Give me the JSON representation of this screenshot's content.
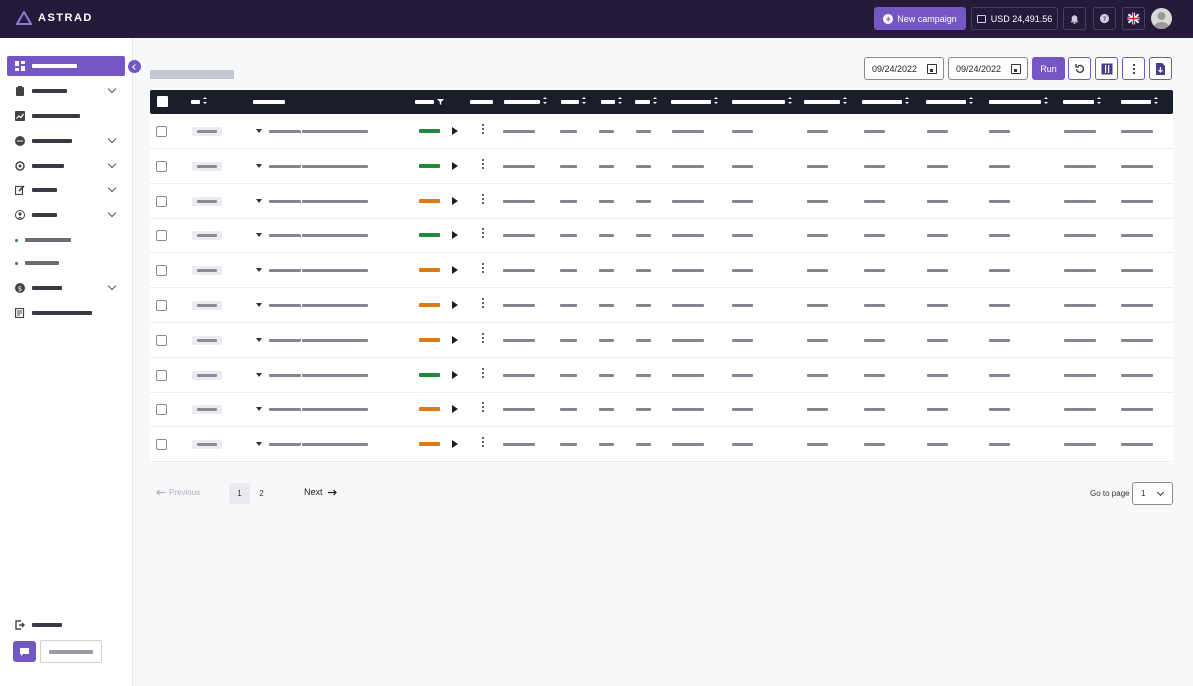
{
  "header": {
    "logo_text": "ASTRAD",
    "new_campaign_label": "New campaign",
    "balance": "USD 24,491.56",
    "icons": [
      "bell-icon",
      "help-icon",
      "uk-flag-icon",
      "user-avatar-icon"
    ]
  },
  "sidebar": {
    "items": [
      {
        "icon": "dashboard-icon",
        "active": true
      },
      {
        "icon": "clipboard-icon",
        "chevron": true
      },
      {
        "icon": "trend-chart-icon"
      },
      {
        "icon": "chat-bubble-icon",
        "chevron": true
      },
      {
        "icon": "target-icon",
        "chevron": true
      },
      {
        "icon": "edit-icon",
        "chevron": true
      },
      {
        "icon": "user-circle-icon",
        "chevron": true
      },
      {
        "icon": "dot-icon"
      },
      {
        "icon": "dot-icon"
      },
      {
        "icon": "dollar-icon",
        "chevron": true
      },
      {
        "icon": "report-icon"
      }
    ],
    "bottom_icon": "logout-icon"
  },
  "toolbar": {
    "date_from": "09/24/2022",
    "date_to": "09/24/2022",
    "run_label": "Run",
    "tools": [
      "refresh-icon",
      "columns-icon",
      "more-vertical-icon",
      "export-file-icon"
    ]
  },
  "table": {
    "rows": [
      {
        "status_color": "#1f8a3b"
      },
      {
        "status_color": "#1f8a3b"
      },
      {
        "status_color": "#e07a10"
      },
      {
        "status_color": "#1f8a3b"
      },
      {
        "status_color": "#e07a10"
      },
      {
        "status_color": "#e07a10"
      },
      {
        "status_color": "#e07a10"
      },
      {
        "status_color": "#1f8a3b"
      },
      {
        "status_color": "#e07a10"
      },
      {
        "status_color": "#e07a10"
      }
    ]
  },
  "pagination": {
    "previous_label": "Previous",
    "pages": [
      "1",
      "2"
    ],
    "current_page": "1",
    "next_label": "Next",
    "goto_label": "Go to page",
    "goto_value": "1"
  },
  "colors": {
    "accent": "#7456c5",
    "topbar": "#261a3a",
    "table_header": "#1b1d2a"
  }
}
